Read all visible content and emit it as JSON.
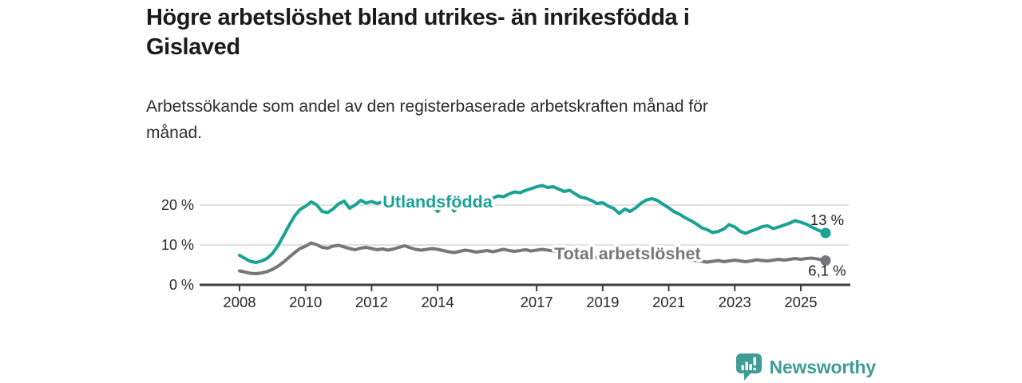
{
  "header": {
    "title": "Högre arbetslöshet bland utrikes- än inrikesfödda i\nGislaved",
    "subtitle": "Arbetssökande som andel av den registerbaserade arbetskraften månad för\nmånad."
  },
  "chart_data": {
    "type": "line",
    "title": "Högre arbetslöshet bland utrikes- än inrikesfödda i Gislaved",
    "subtitle": "Arbetssökande som andel av den registerbaserade arbetskraften månad för månad.",
    "xlabel": "",
    "ylabel": "",
    "xlim": [
      2006.8,
      2026.5
    ],
    "ylim": [
      0,
      26
    ],
    "grid": "horizontal-only",
    "legend_position": "inline-labels-on-lines",
    "x_ticks": [
      2008,
      2010,
      2012,
      2014,
      2017,
      2019,
      2021,
      2023,
      2025
    ],
    "y_ticks": [
      {
        "value": 0,
        "label": "0 %"
      },
      {
        "value": 10,
        "label": "10 %"
      },
      {
        "value": 20,
        "label": "20 %"
      }
    ],
    "style": {
      "grid_color": "#cfcfcf",
      "axis_color": "#3f3f3f",
      "axis_text_color": "#282828",
      "value_label_color": "#1f1f1f"
    },
    "series": [
      {
        "id": "utlandsfodda",
        "name": "Utlandsfödda",
        "color": "#1aa294",
        "end_label": "13 %",
        "end_label_position": "above",
        "label_at": [
          2014.0,
          20.8
        ],
        "points": [
          [
            2008.0,
            7.4
          ],
          [
            2008.17,
            6.6
          ],
          [
            2008.33,
            5.9
          ],
          [
            2008.5,
            5.6
          ],
          [
            2008.67,
            6.0
          ],
          [
            2008.83,
            6.6
          ],
          [
            2009.0,
            7.9
          ],
          [
            2009.17,
            9.9
          ],
          [
            2009.33,
            12.3
          ],
          [
            2009.5,
            14.9
          ],
          [
            2009.67,
            17.3
          ],
          [
            2009.83,
            18.9
          ],
          [
            2010.0,
            19.7
          ],
          [
            2010.17,
            20.8
          ],
          [
            2010.33,
            20.1
          ],
          [
            2010.5,
            18.4
          ],
          [
            2010.67,
            18.1
          ],
          [
            2010.83,
            19.0
          ],
          [
            2011.0,
            20.3
          ],
          [
            2011.17,
            21.0
          ],
          [
            2011.33,
            19.2
          ],
          [
            2011.5,
            20.0
          ],
          [
            2011.67,
            21.2
          ],
          [
            2011.83,
            20.5
          ],
          [
            2012.0,
            20.9
          ],
          [
            2012.17,
            20.4
          ],
          [
            2012.33,
            20.8
          ],
          [
            2012.5,
            20.5
          ],
          [
            2012.67,
            21.0
          ],
          [
            2012.83,
            20.6
          ],
          [
            2013.0,
            21.1
          ],
          [
            2013.17,
            20.7
          ],
          [
            2013.33,
            21.0
          ],
          [
            2013.5,
            20.5
          ],
          [
            2013.67,
            20.1
          ],
          [
            2013.83,
            19.6
          ],
          [
            2014.0,
            18.4
          ],
          [
            2014.17,
            19.8
          ],
          [
            2014.33,
            20.6
          ],
          [
            2014.5,
            18.5
          ],
          [
            2014.67,
            19.9
          ],
          [
            2014.83,
            20.8
          ],
          [
            2015.0,
            20.9
          ],
          [
            2015.17,
            20.5
          ],
          [
            2015.33,
            20.9
          ],
          [
            2015.5,
            21.3
          ],
          [
            2015.67,
            21.7
          ],
          [
            2015.83,
            22.3
          ],
          [
            2016.0,
            22.1
          ],
          [
            2016.17,
            22.8
          ],
          [
            2016.33,
            23.3
          ],
          [
            2016.5,
            23.1
          ],
          [
            2016.67,
            23.7
          ],
          [
            2016.83,
            24.1
          ],
          [
            2017.0,
            24.6
          ],
          [
            2017.17,
            24.9
          ],
          [
            2017.33,
            24.4
          ],
          [
            2017.5,
            24.6
          ],
          [
            2017.67,
            24.0
          ],
          [
            2017.83,
            23.4
          ],
          [
            2018.0,
            23.7
          ],
          [
            2018.17,
            22.8
          ],
          [
            2018.33,
            22.0
          ],
          [
            2018.5,
            21.7
          ],
          [
            2018.67,
            21.1
          ],
          [
            2018.83,
            20.4
          ],
          [
            2019.0,
            20.6
          ],
          [
            2019.17,
            19.7
          ],
          [
            2019.33,
            19.2
          ],
          [
            2019.5,
            17.9
          ],
          [
            2019.67,
            19.0
          ],
          [
            2019.83,
            18.4
          ],
          [
            2020.0,
            19.3
          ],
          [
            2020.17,
            20.5
          ],
          [
            2020.33,
            21.3
          ],
          [
            2020.5,
            21.6
          ],
          [
            2020.67,
            21.1
          ],
          [
            2020.83,
            20.2
          ],
          [
            2021.0,
            19.3
          ],
          [
            2021.17,
            18.3
          ],
          [
            2021.33,
            17.7
          ],
          [
            2021.5,
            16.8
          ],
          [
            2021.67,
            16.1
          ],
          [
            2021.83,
            15.3
          ],
          [
            2022.0,
            14.3
          ],
          [
            2022.17,
            13.8
          ],
          [
            2022.33,
            13.1
          ],
          [
            2022.5,
            13.4
          ],
          [
            2022.67,
            14.0
          ],
          [
            2022.83,
            15.1
          ],
          [
            2023.0,
            14.5
          ],
          [
            2023.17,
            13.4
          ],
          [
            2023.33,
            12.9
          ],
          [
            2023.5,
            13.5
          ],
          [
            2023.67,
            14.0
          ],
          [
            2023.83,
            14.6
          ],
          [
            2024.0,
            14.8
          ],
          [
            2024.17,
            14.1
          ],
          [
            2024.33,
            14.5
          ],
          [
            2024.5,
            15.0
          ],
          [
            2024.67,
            15.5
          ],
          [
            2024.83,
            16.1
          ],
          [
            2025.0,
            15.7
          ],
          [
            2025.17,
            15.2
          ],
          [
            2025.33,
            14.5
          ],
          [
            2025.5,
            13.8
          ],
          [
            2025.75,
            13.0
          ]
        ]
      },
      {
        "id": "total-arbetsloshet",
        "name": "Total arbetslöshet",
        "color": "#77777b",
        "end_label": "6,1 %",
        "end_label_position": "below",
        "label_at": [
          2019.75,
          7.8
        ],
        "points": [
          [
            2008.0,
            3.5
          ],
          [
            2008.17,
            3.2
          ],
          [
            2008.33,
            2.9
          ],
          [
            2008.5,
            2.8
          ],
          [
            2008.67,
            3.0
          ],
          [
            2008.83,
            3.3
          ],
          [
            2009.0,
            3.9
          ],
          [
            2009.17,
            4.7
          ],
          [
            2009.33,
            5.7
          ],
          [
            2009.5,
            6.9
          ],
          [
            2009.67,
            8.1
          ],
          [
            2009.83,
            9.1
          ],
          [
            2010.0,
            9.7
          ],
          [
            2010.17,
            10.5
          ],
          [
            2010.33,
            10.1
          ],
          [
            2010.5,
            9.4
          ],
          [
            2010.67,
            9.2
          ],
          [
            2010.83,
            9.7
          ],
          [
            2011.0,
            9.9
          ],
          [
            2011.17,
            9.5
          ],
          [
            2011.33,
            9.1
          ],
          [
            2011.5,
            8.8
          ],
          [
            2011.67,
            9.2
          ],
          [
            2011.83,
            9.4
          ],
          [
            2012.0,
            9.1
          ],
          [
            2012.17,
            8.8
          ],
          [
            2012.33,
            9.0
          ],
          [
            2012.5,
            8.7
          ],
          [
            2012.67,
            9.0
          ],
          [
            2012.83,
            9.4
          ],
          [
            2013.0,
            9.8
          ],
          [
            2013.17,
            9.3
          ],
          [
            2013.33,
            8.9
          ],
          [
            2013.5,
            8.7
          ],
          [
            2013.67,
            8.9
          ],
          [
            2013.83,
            9.1
          ],
          [
            2014.0,
            8.9
          ],
          [
            2014.17,
            8.6
          ],
          [
            2014.33,
            8.3
          ],
          [
            2014.5,
            8.1
          ],
          [
            2014.67,
            8.4
          ],
          [
            2014.83,
            8.7
          ],
          [
            2015.0,
            8.5
          ],
          [
            2015.17,
            8.2
          ],
          [
            2015.33,
            8.4
          ],
          [
            2015.5,
            8.6
          ],
          [
            2015.67,
            8.3
          ],
          [
            2015.83,
            8.6
          ],
          [
            2016.0,
            8.9
          ],
          [
            2016.17,
            8.6
          ],
          [
            2016.33,
            8.4
          ],
          [
            2016.5,
            8.6
          ],
          [
            2016.67,
            8.8
          ],
          [
            2016.83,
            8.5
          ],
          [
            2017.0,
            8.7
          ],
          [
            2017.17,
            8.9
          ],
          [
            2017.33,
            8.7
          ],
          [
            2017.5,
            8.5
          ],
          [
            2018.0,
            7.8
          ],
          [
            2018.5,
            7.1
          ],
          [
            2019.0,
            6.6
          ],
          [
            2019.5,
            6.4
          ],
          [
            2020.0,
            7.2
          ],
          [
            2020.5,
            7.7
          ],
          [
            2021.0,
            7.1
          ],
          [
            2021.5,
            6.4
          ],
          [
            2022.0,
            5.9
          ],
          [
            2022.17,
            5.7
          ],
          [
            2022.33,
            5.9
          ],
          [
            2022.5,
            6.1
          ],
          [
            2022.67,
            5.8
          ],
          [
            2022.83,
            6.0
          ],
          [
            2023.0,
            6.2
          ],
          [
            2023.17,
            6.0
          ],
          [
            2023.33,
            5.8
          ],
          [
            2023.5,
            6.0
          ],
          [
            2023.67,
            6.3
          ],
          [
            2023.83,
            6.1
          ],
          [
            2024.0,
            6.0
          ],
          [
            2024.17,
            6.2
          ],
          [
            2024.33,
            6.4
          ],
          [
            2024.5,
            6.2
          ],
          [
            2024.67,
            6.4
          ],
          [
            2024.83,
            6.6
          ],
          [
            2025.0,
            6.4
          ],
          [
            2025.17,
            6.6
          ],
          [
            2025.33,
            6.7
          ],
          [
            2025.5,
            6.5
          ],
          [
            2025.75,
            6.1
          ]
        ]
      }
    ]
  },
  "footer": {
    "brand": "Newsworthy",
    "brand_color": "#3f9d96"
  }
}
